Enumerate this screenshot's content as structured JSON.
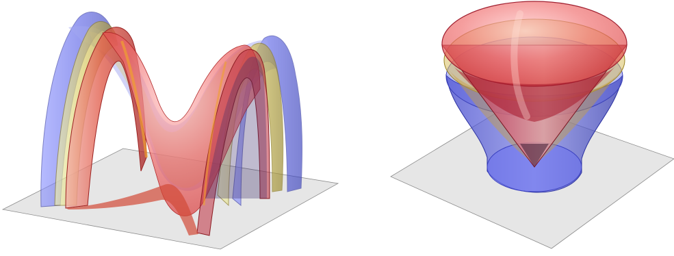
{
  "figure": {
    "panels": [
      {
        "id": "left",
        "description_name": "saddle-surfaces-panel",
        "layers": [
          "blue",
          "yellow",
          "red"
        ]
      },
      {
        "id": "right",
        "description_name": "cone-hyperboloid-panel",
        "layers": [
          "blue",
          "yellow",
          "red"
        ]
      }
    ]
  },
  "colors": {
    "blue": "#4d55e6",
    "blue_light": "#9aa2ff",
    "yellow": "#d8c85a",
    "yellow_light": "#e8e6a0",
    "red": "#d93a3a",
    "red_light": "#f2a0a0",
    "plane": "#e4e4e4",
    "plane_edge": "#8a8a8a"
  }
}
